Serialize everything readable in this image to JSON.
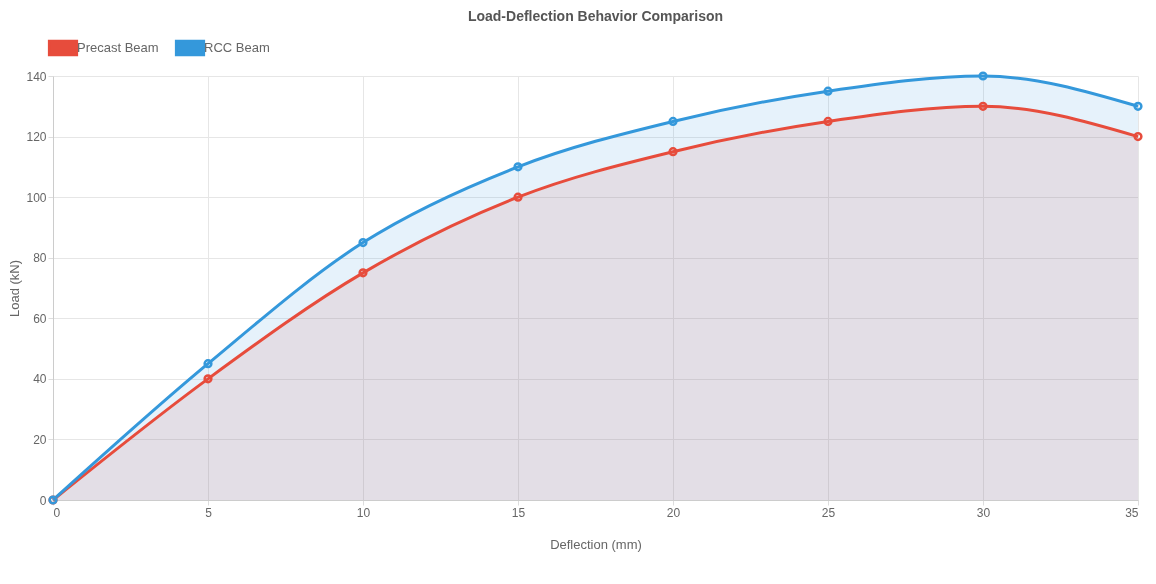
{
  "chart_data": {
    "type": "area",
    "title": "Load-Deflection Behavior Comparison",
    "xlabel": "Deflection (mm)",
    "ylabel": "Load (kN)",
    "x": [
      0,
      5,
      10,
      15,
      20,
      25,
      30,
      35
    ],
    "series": [
      {
        "name": "Precast Beam",
        "color": "#e74c3c",
        "values": [
          0,
          40,
          75,
          100,
          115,
          125,
          130,
          120
        ]
      },
      {
        "name": "RCC Beam",
        "color": "#3498db",
        "values": [
          0,
          45,
          85,
          110,
          125,
          135,
          140,
          130
        ]
      }
    ],
    "xlim": [
      0,
      35
    ],
    "xticks": [
      0,
      5,
      10,
      15,
      20,
      25,
      30,
      35
    ],
    "ylim": [
      0,
      140
    ],
    "yticks": [
      0,
      20,
      40,
      60,
      80,
      100,
      120,
      140
    ],
    "grid": true,
    "legend": "top",
    "marker": "circle",
    "line_style": "solid"
  }
}
